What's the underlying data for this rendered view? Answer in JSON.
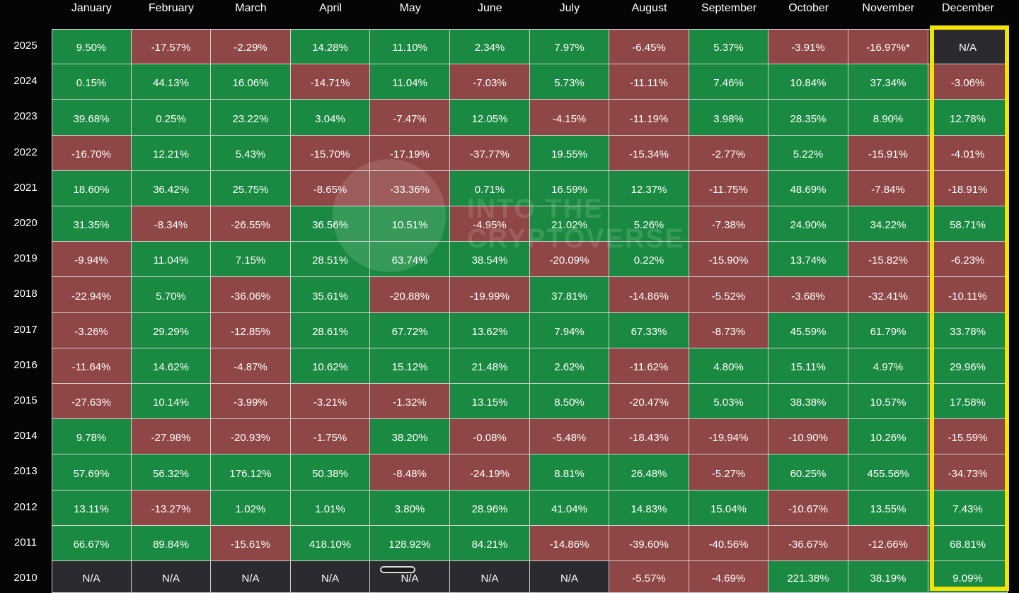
{
  "colors": {
    "positive": "#1a8a42",
    "negative": "#8f4646",
    "na": "#2a2a30",
    "highlight": "#f2e205",
    "background": "#050505"
  },
  "watermark": {
    "line1": "INTO THE",
    "line2": "CRYPTOVERSE"
  },
  "chart_data": {
    "type": "heatmap",
    "title": "",
    "x_categories": [
      "January",
      "February",
      "March",
      "April",
      "May",
      "June",
      "July",
      "August",
      "September",
      "October",
      "November",
      "December"
    ],
    "y_categories": [
      "2025",
      "2024",
      "2023",
      "2022",
      "2021",
      "2020",
      "2019",
      "2018",
      "2017",
      "2016",
      "2015",
      "2014",
      "2013",
      "2012",
      "2011",
      "2010"
    ],
    "highlighted_column": "December",
    "cells": [
      [
        "9.50%",
        "-17.57%",
        "-2.29%",
        "14.28%",
        "11.10%",
        "2.34%",
        "7.97%",
        "-6.45%",
        "5.37%",
        "-3.91%",
        "-16.97%*",
        "N/A"
      ],
      [
        "0.15%",
        "44.13%",
        "16.06%",
        "-14.71%",
        "11.04%",
        "-7.03%",
        "5.73%",
        "-11.11%",
        "7.46%",
        "10.84%",
        "37.34%",
        "-3.06%"
      ],
      [
        "39.68%",
        "0.25%",
        "23.22%",
        "3.04%",
        "-7.47%",
        "12.05%",
        "-4.15%",
        "-11.19%",
        "3.98%",
        "28.35%",
        "8.90%",
        "12.78%"
      ],
      [
        "-16.70%",
        "12.21%",
        "5.43%",
        "-15.70%",
        "-17.19%",
        "-37.77%",
        "19.55%",
        "-15.34%",
        "-2.77%",
        "5.22%",
        "-15.91%",
        "-4.01%"
      ],
      [
        "18.60%",
        "36.42%",
        "25.75%",
        "-8.65%",
        "-33.36%",
        "0.71%",
        "16.59%",
        "12.37%",
        "-11.75%",
        "48.69%",
        "-7.84%",
        "-18.91%"
      ],
      [
        "31.35%",
        "-8.34%",
        "-26.55%",
        "36.56%",
        "10.51%",
        "-4.95%",
        "21.02%",
        "5.26%",
        "-7.38%",
        "24.90%",
        "34.22%",
        "58.71%"
      ],
      [
        "-9.94%",
        "11.04%",
        "7.15%",
        "28.51%",
        "63.74%",
        "38.54%",
        "-20.09%",
        "0.22%",
        "-15.90%",
        "13.74%",
        "-15.82%",
        "-6.23%"
      ],
      [
        "-22.94%",
        "5.70%",
        "-36.06%",
        "35.61%",
        "-20.88%",
        "-19.99%",
        "37.81%",
        "-14.86%",
        "-5.52%",
        "-3.68%",
        "-32.41%",
        "-10.11%"
      ],
      [
        "-3.26%",
        "29.29%",
        "-12.85%",
        "28.61%",
        "67.72%",
        "13.62%",
        "7.94%",
        "67.33%",
        "-8.73%",
        "45.59%",
        "61.79%",
        "33.78%"
      ],
      [
        "-11.64%",
        "14.62%",
        "-4.87%",
        "10.62%",
        "15.12%",
        "21.48%",
        "2.62%",
        "-11.62%",
        "4.80%",
        "15.11%",
        "4.97%",
        "29.96%"
      ],
      [
        "-27.63%",
        "10.14%",
        "-3.99%",
        "-3.21%",
        "-1.32%",
        "13.15%",
        "8.50%",
        "-20.47%",
        "5.03%",
        "38.38%",
        "10.57%",
        "17.58%"
      ],
      [
        "9.78%",
        "-27.98%",
        "-20.93%",
        "-1.75%",
        "38.20%",
        "-0.08%",
        "-5.48%",
        "-18.43%",
        "-19.94%",
        "-10.90%",
        "10.26%",
        "-15.59%"
      ],
      [
        "57.69%",
        "56.32%",
        "176.12%",
        "50.38%",
        "-8.48%",
        "-24.19%",
        "8.81%",
        "26.48%",
        "-5.27%",
        "60.25%",
        "455.56%",
        "-34.73%"
      ],
      [
        "13.11%",
        "-13.27%",
        "1.02%",
        "1.01%",
        "3.80%",
        "28.96%",
        "41.04%",
        "14.83%",
        "15.04%",
        "-10.67%",
        "13.55%",
        "7.43%"
      ],
      [
        "66.67%",
        "89.84%",
        "-15.61%",
        "418.10%",
        "128.92%",
        "84.21%",
        "-14.86%",
        "-39.60%",
        "-40.56%",
        "-36.67%",
        "-12.66%",
        "68.81%"
      ],
      [
        "N/A",
        "N/A",
        "N/A",
        "N/A",
        "N/A",
        "N/A",
        "N/A",
        "-5.57%",
        "-4.69%",
        "221.38%",
        "38.19%",
        "9.09%"
      ]
    ]
  }
}
